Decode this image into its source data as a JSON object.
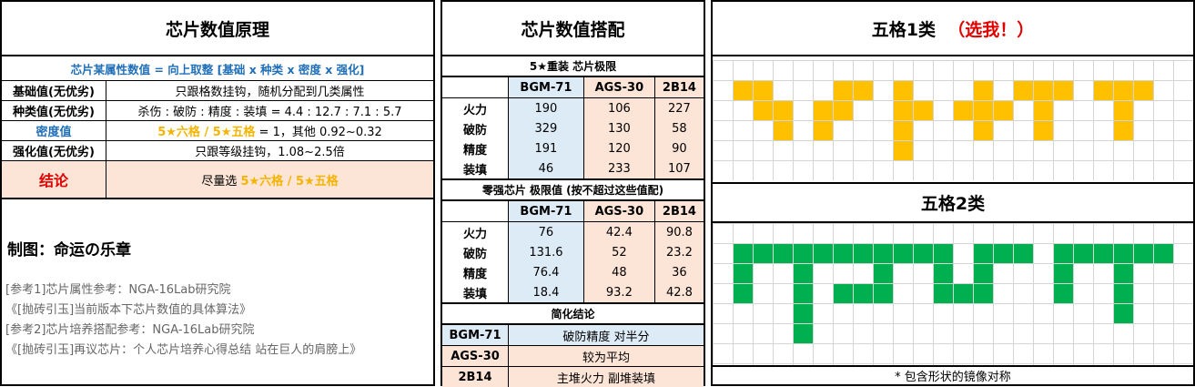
{
  "principle": {
    "title": "芯片数值原理",
    "formula": "芯片某属性数值 = 向上取整 [基础 x 种类 x 密度 x 强化]",
    "rows": [
      {
        "key": "基础值(无优劣)",
        "value": "只跟格数挂钩，随机分配到几类属性"
      },
      {
        "key": "种类值(无优劣)",
        "value": "杀伤 : 破防 : 精度 : 装填 = 4.4 : 12.7 : 7.1 : 5.7"
      },
      {
        "key": "密度值",
        "value_highlight": "5★六格 / 5★五格",
        "value_rest": " = 1，其他 0.92~0.32"
      },
      {
        "key": "强化值(无优劣)",
        "value": "只跟等级挂钩，1.08~2.5倍"
      }
    ],
    "conclusion": {
      "key": "结论",
      "value_prefix": "尽量选 ",
      "value_highlight": "5★六格 / 5★五格"
    },
    "maker": "制图：命运の乐章",
    "refs": [
      "[参考1]芯片属性参考：NGA-16Lab研究院",
      "《[抛砖引玉]当前版本下芯片数值的具体算法》",
      "[参考2]芯片培养搭配参考：NGA-16Lab研究院",
      "《[抛砖引玉]再议芯片：个人芯片培养心得总结 站在巨人的肩膀上》"
    ]
  },
  "matching": {
    "title": "芯片数值搭配",
    "heavy": {
      "subtitle": "5★重装 芯片极限",
      "columns": [
        "BGM-71",
        "AGS-30",
        "2B14"
      ],
      "rows": [
        {
          "label": "火力",
          "values": [
            "190",
            "106",
            "227"
          ]
        },
        {
          "label": "破防",
          "values": [
            "329",
            "130",
            "58"
          ]
        },
        {
          "label": "精度",
          "values": [
            "191",
            "120",
            "90"
          ]
        },
        {
          "label": "装填",
          "values": [
            "46",
            "233",
            "107"
          ]
        }
      ]
    },
    "zero": {
      "subtitle": "零强芯片 极限值 (按不超过这些值配)",
      "columns": [
        "BGM-71",
        "AGS-30",
        "2B14"
      ],
      "rows": [
        {
          "label": "火力",
          "values": [
            "76",
            "42.4",
            "90.8"
          ]
        },
        {
          "label": "破防",
          "values": [
            "131.6",
            "52",
            "23.2"
          ]
        },
        {
          "label": "精度",
          "values": [
            "76.4",
            "48",
            "36"
          ]
        },
        {
          "label": "装填",
          "values": [
            "18.4",
            "93.2",
            "42.8"
          ]
        }
      ]
    },
    "summary": {
      "subtitle": "简化结论",
      "rows": [
        {
          "label": "BGM-71",
          "value": "破防精度 对半分"
        },
        {
          "label": "AGS-30",
          "value": "较为平均"
        },
        {
          "label": "2B14",
          "value": "主堆火力 副堆装填"
        }
      ]
    }
  },
  "shapes": {
    "class1": {
      "title": "五格1类",
      "pick": "（选我！）",
      "color": "#ffc000"
    },
    "class2": {
      "title": "五格2类",
      "color": "#00b050"
    },
    "note": "* 包含形状的镜像对称"
  }
}
